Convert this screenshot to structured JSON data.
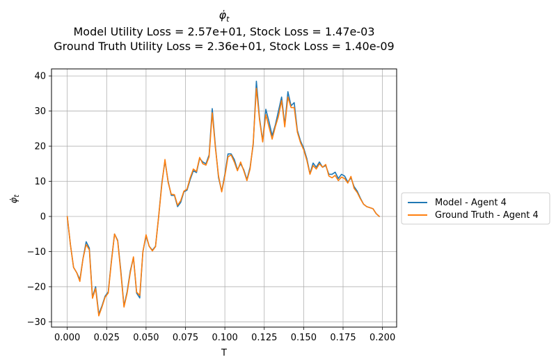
{
  "chart_data": {
    "type": "line",
    "title_symbol": "φ̇",
    "title_symbol_sub": "t",
    "title_lines": [
      "Model Utility Loss = 2.57e+01, Stock Loss = 1.47e-03",
      "Ground Truth Utility Loss = 2.36e+01, Stock Loss = 1.40e-09"
    ],
    "xlabel": "T",
    "ylabel_symbol": "φ̇",
    "ylabel_sub": "t",
    "xlim": [
      -0.01,
      0.209
    ],
    "ylim": [
      -31.5,
      42
    ],
    "xticks": [
      "0.000",
      "0.025",
      "0.050",
      "0.075",
      "0.100",
      "0.125",
      "0.150",
      "0.175",
      "0.200"
    ],
    "xtick_values": [
      0,
      0.025,
      0.05,
      0.075,
      0.1,
      0.125,
      0.15,
      0.175,
      0.2
    ],
    "yticks": [
      "−30",
      "−20",
      "−10",
      "0",
      "10",
      "20",
      "30",
      "40"
    ],
    "ytick_values": [
      -30,
      -20,
      -10,
      0,
      10,
      20,
      30,
      40
    ],
    "grid": true,
    "legend_position": "outside-right",
    "x_step": 0.002,
    "series": [
      {
        "name": "Model - Agent 4",
        "color": "#1f77b4",
        "values": [
          0,
          -8,
          -14.5,
          -16,
          -18,
          -12,
          -7.2,
          -9,
          -23,
          -20,
          -27.8,
          -25.5,
          -22.7,
          -21.5,
          -12.7,
          -5,
          -6.8,
          -15.5,
          -25.5,
          -21.4,
          -15.5,
          -11.7,
          -21.8,
          -23.2,
          -10,
          -5.5,
          -8.5,
          -9.6,
          -8.5,
          0,
          9.5,
          15.8,
          10,
          6,
          6,
          2.8,
          4,
          7,
          7.5,
          10.5,
          13,
          12.5,
          16.5,
          15.5,
          15,
          17.5,
          30.7,
          20,
          11,
          7.2,
          12,
          17.8,
          17.8,
          16.2,
          13.3,
          15,
          13.3,
          10.5,
          14,
          20.5,
          38.5,
          28,
          21.5,
          30.5,
          27,
          23,
          26,
          30,
          34,
          26,
          35.5,
          31.5,
          32.4,
          24.5,
          21.5,
          19.5,
          16.5,
          12.2,
          15.2,
          14,
          15.5,
          14,
          14.5,
          12,
          12,
          12.6,
          10.8,
          12,
          11.5,
          9.8,
          11,
          8.5,
          7.2,
          5.2,
          3.5,
          2.8,
          2.5,
          2.2,
          0.8,
          0
        ]
      },
      {
        "name": "Ground Truth - Agent 4",
        "color": "#ff7f0e",
        "values": [
          0,
          -8,
          -14.5,
          -16,
          -18.5,
          -12,
          -8,
          -9.5,
          -23.3,
          -20.5,
          -28.3,
          -25.8,
          -23,
          -21.8,
          -13,
          -5,
          -7,
          -16,
          -25.8,
          -21.8,
          -16,
          -11.5,
          -21.5,
          -22.5,
          -10,
          -5.2,
          -8.5,
          -9.8,
          -8.6,
          0,
          9,
          16.2,
          9.7,
          6.3,
          6.2,
          3.2,
          4.5,
          7.2,
          7.8,
          11,
          13.5,
          12.8,
          16.8,
          15,
          14.6,
          17,
          29.5,
          19.5,
          11.5,
          7,
          11.5,
          17,
          17.5,
          15.5,
          13,
          15.5,
          13,
          10.2,
          13.5,
          21,
          36.5,
          27.5,
          21.2,
          29,
          25.5,
          22,
          25.5,
          28.5,
          33,
          25.5,
          34,
          31,
          31,
          24,
          21,
          19,
          16,
          12,
          14.5,
          13.5,
          15,
          14,
          14.8,
          11.5,
          11,
          11.7,
          10.2,
          11.2,
          10.8,
          9.5,
          11.4,
          8,
          6.8,
          5,
          3.5,
          2.8,
          2.5,
          2.2,
          0.8,
          0
        ]
      }
    ]
  }
}
